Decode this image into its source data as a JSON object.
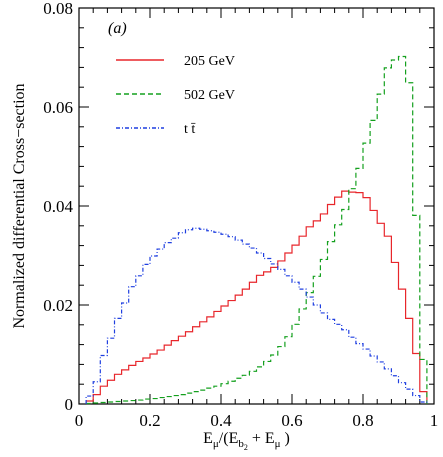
{
  "chart_data": {
    "type": "line",
    "step": true,
    "panel_label": "(a)",
    "ylabel": "Normalized differential Cross−section",
    "xlabel": {
      "E": "E",
      "mu": "μ",
      "slash": "/(E",
      "b": "b",
      "two": "2",
      "plus": " + E",
      "close": " )"
    },
    "xlim": [
      0,
      1
    ],
    "ylim": [
      0,
      0.08
    ],
    "x_ticks": [
      0,
      0.2,
      0.4,
      0.6,
      0.8,
      1
    ],
    "x_tick_labels": [
      "0",
      "0.2",
      "0.4",
      "0.6",
      "0.8",
      "1"
    ],
    "y_ticks": [
      0,
      0.02,
      0.04,
      0.06,
      0.08
    ],
    "y_tick_labels": [
      "0",
      "0.02",
      "0.04",
      "0.06",
      "0.08"
    ],
    "bin_edges_start": 0.02,
    "bin_width": 0.02,
    "legend_position": "top-left",
    "series": [
      {
        "name": "205 GeV",
        "color": "#e8262b",
        "dash": "solid",
        "values": [
          0.0006,
          0.0019,
          0.0036,
          0.0048,
          0.006,
          0.0069,
          0.0078,
          0.0086,
          0.0093,
          0.0101,
          0.0109,
          0.0119,
          0.0128,
          0.0137,
          0.0146,
          0.0156,
          0.0166,
          0.0176,
          0.0187,
          0.0198,
          0.0209,
          0.022,
          0.0232,
          0.0246,
          0.026,
          0.0267,
          0.0276,
          0.0289,
          0.0305,
          0.0321,
          0.0339,
          0.0358,
          0.037,
          0.0384,
          0.0403,
          0.0418,
          0.043,
          0.0428,
          0.0427,
          0.0417,
          0.0391,
          0.0365,
          0.0339,
          0.0286,
          0.0232,
          0.0173,
          0.0102,
          0.0025
        ]
      },
      {
        "name": "502 GeV",
        "color": "#14a01e",
        "dash": "dashed",
        "values": [
          0.0001,
          0.0002,
          0.0003,
          0.0004,
          0.0005,
          0.0006,
          0.0007,
          0.0008,
          0.001,
          0.0011,
          0.0013,
          0.0015,
          0.0017,
          0.0019,
          0.0022,
          0.0025,
          0.0028,
          0.0032,
          0.0036,
          0.0041,
          0.0046,
          0.0052,
          0.0058,
          0.0066,
          0.0075,
          0.0086,
          0.0099,
          0.0116,
          0.0136,
          0.0161,
          0.0192,
          0.0225,
          0.0258,
          0.0292,
          0.0328,
          0.0362,
          0.0393,
          0.0435,
          0.0476,
          0.0527,
          0.0573,
          0.0626,
          0.0679,
          0.0695,
          0.0702,
          0.0649,
          0.0381,
          0.009
        ]
      },
      {
        "name": "t t̄",
        "color": "#1f3fe0",
        "dash": "dashdot",
        "values": [
          0.0016,
          0.0045,
          0.0098,
          0.0133,
          0.0173,
          0.0204,
          0.0237,
          0.0259,
          0.0282,
          0.0299,
          0.0313,
          0.0326,
          0.0335,
          0.0346,
          0.0352,
          0.0355,
          0.0353,
          0.035,
          0.0347,
          0.0343,
          0.0338,
          0.0331,
          0.0323,
          0.0315,
          0.0305,
          0.0294,
          0.0283,
          0.0272,
          0.0259,
          0.0246,
          0.0232,
          0.0216,
          0.02,
          0.0184,
          0.0171,
          0.0161,
          0.015,
          0.0135,
          0.0122,
          0.0111,
          0.0097,
          0.0085,
          0.0071,
          0.0057,
          0.0043,
          0.003,
          0.0017,
          0.0004
        ]
      }
    ]
  }
}
